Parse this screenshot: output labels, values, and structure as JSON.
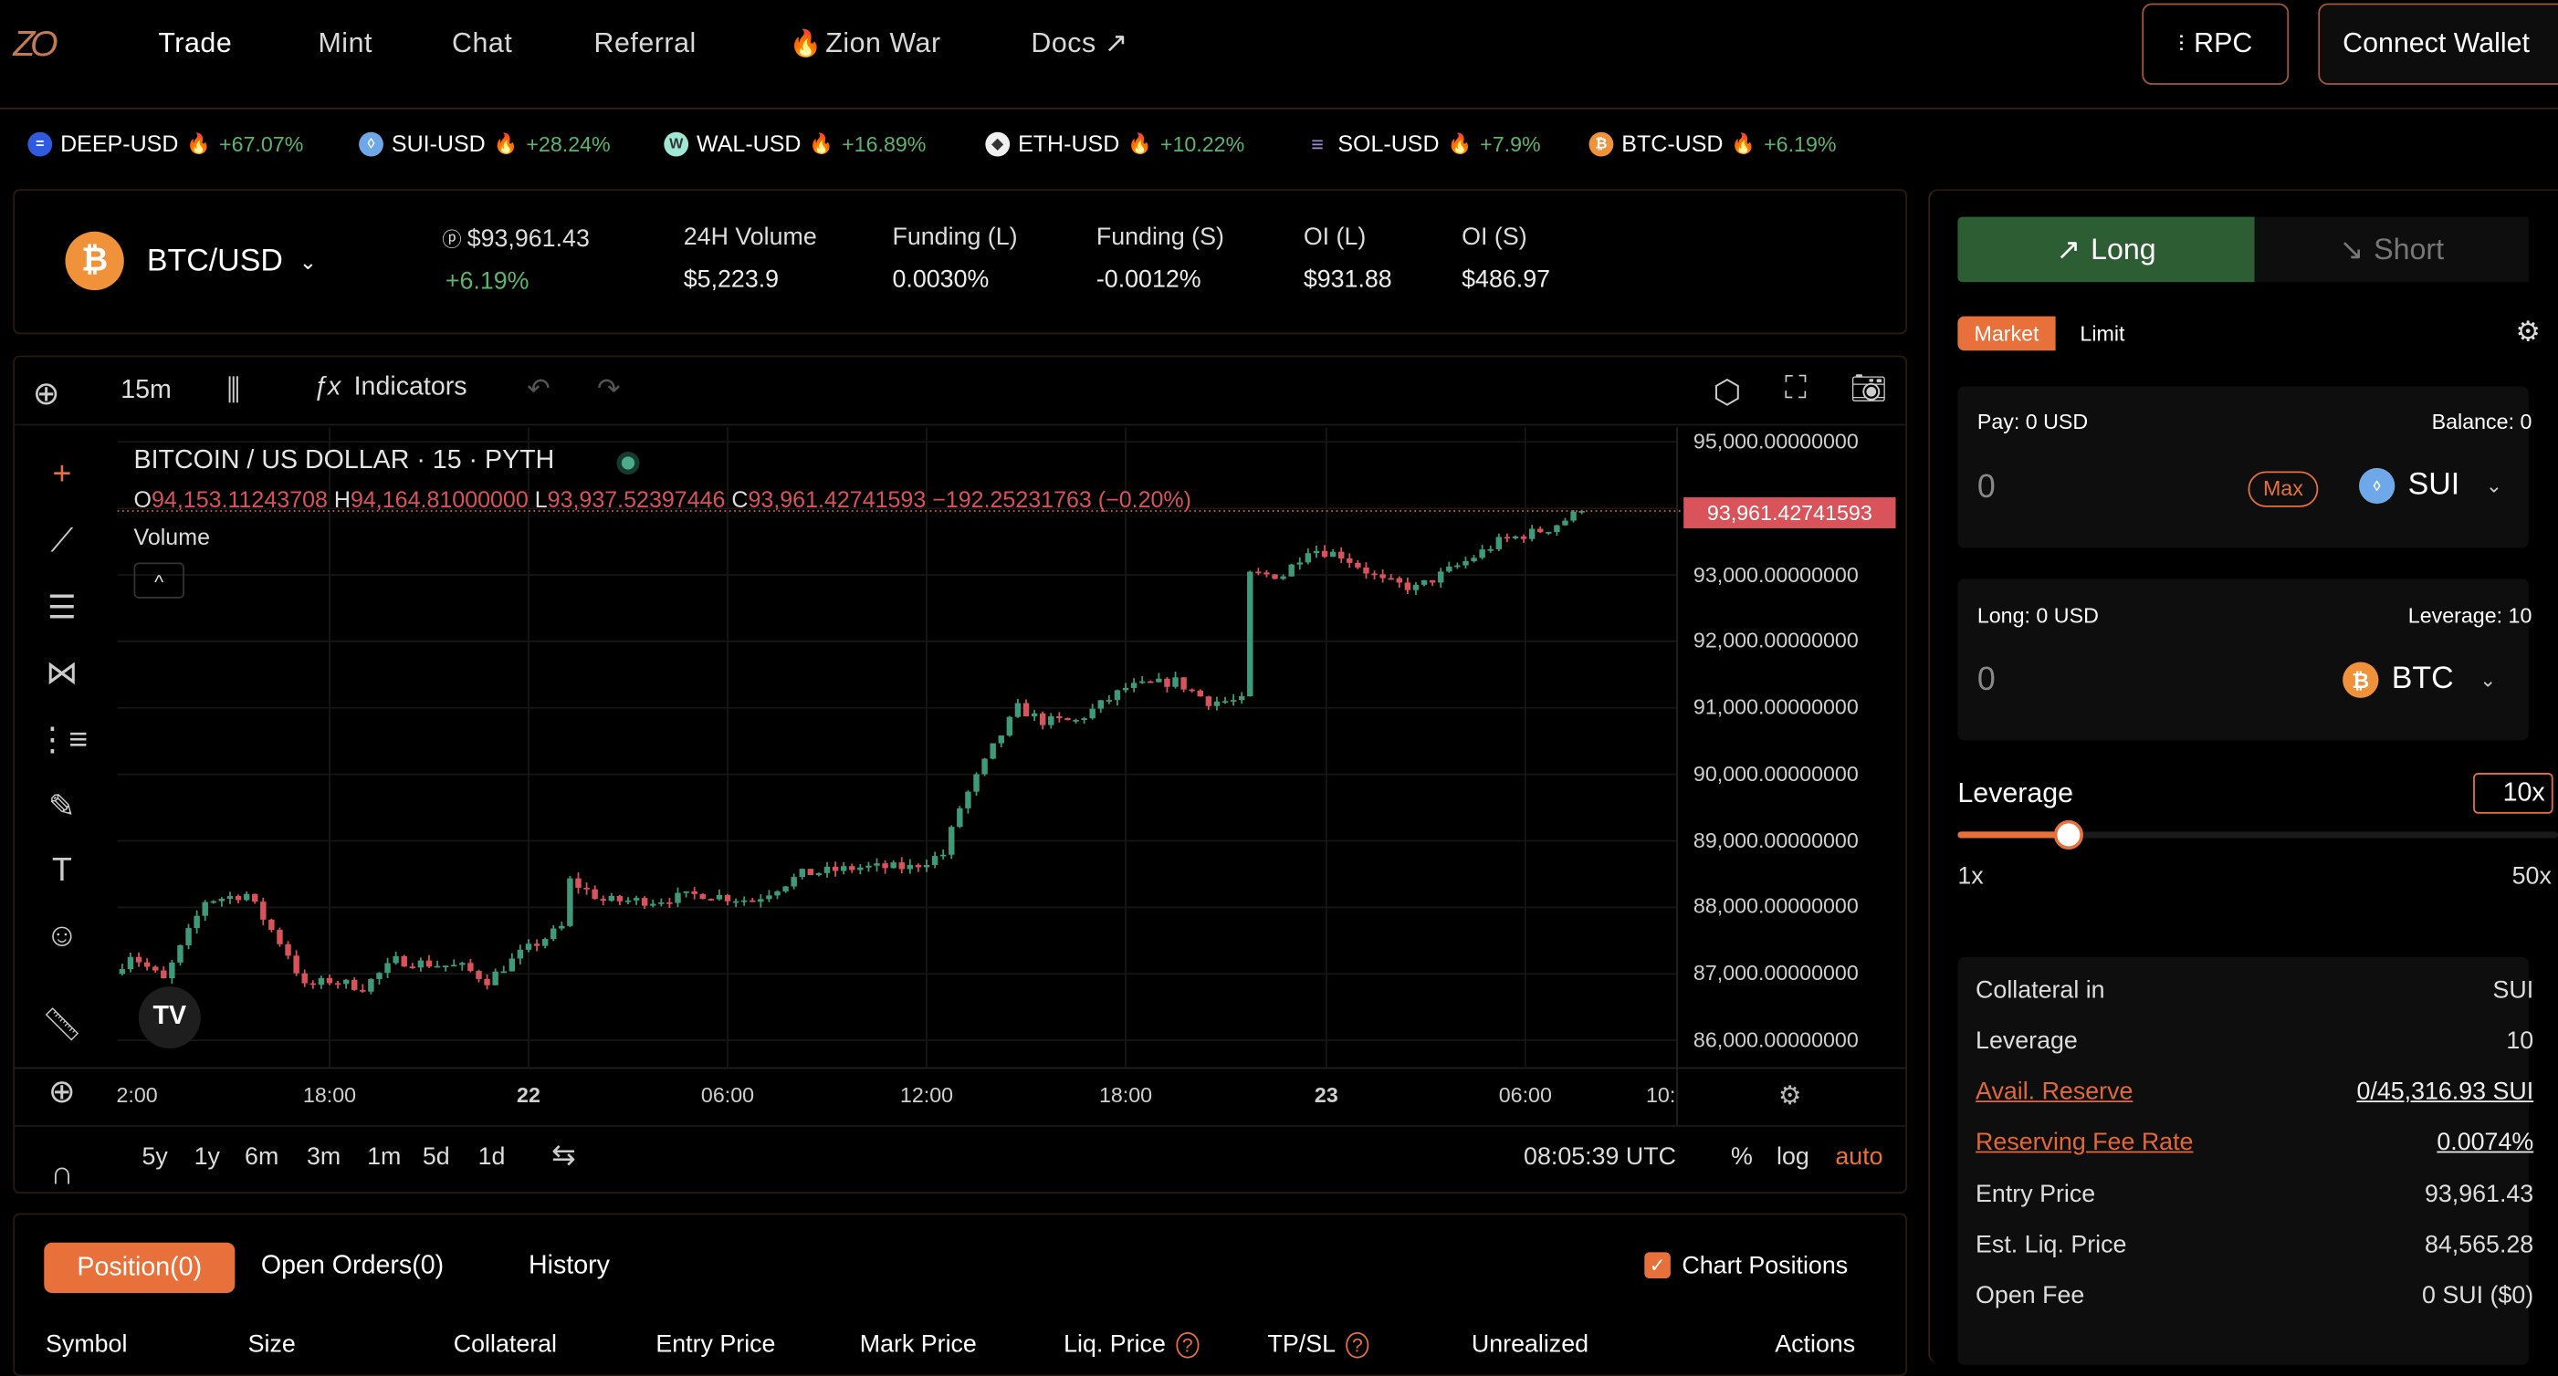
{
  "nav": {
    "logo": "ZO",
    "items": [
      "Trade",
      "Mint",
      "Chat",
      "Referral",
      "Zion War",
      "Docs ↗"
    ],
    "rpc_label": "RPC",
    "connect_label": "Connect Wallet"
  },
  "tickers": [
    {
      "pair": "DEEP-USD",
      "change": "+67.07%",
      "color": "#2f5be0",
      "glyph": "="
    },
    {
      "pair": "SUI-USD",
      "change": "+28.24%",
      "color": "#6fa8e8",
      "glyph": "◊"
    },
    {
      "pair": "WAL-USD",
      "change": "+16.89%",
      "color": "#9fe6d3",
      "glyph": "W"
    },
    {
      "pair": "ETH-USD",
      "change": "+10.22%",
      "color": "#f0f0f0",
      "glyph": "◆"
    },
    {
      "pair": "SOL-USD",
      "change": "+7.9%",
      "color": "#000000",
      "glyph": "≡"
    },
    {
      "pair": "BTC-USD",
      "change": "+6.19%",
      "color": "#f0923a",
      "glyph": "₿"
    }
  ],
  "market": {
    "pair": "BTC/USD",
    "price": "$93,961.43",
    "change": "+6.19%",
    "stats": [
      {
        "label": "24H Volume",
        "value": "$5,223.9"
      },
      {
        "label": "Funding (L)",
        "value": "0.0030%"
      },
      {
        "label": "Funding (S)",
        "value": "-0.0012%"
      },
      {
        "label": "OI (L)",
        "value": "$931.88"
      },
      {
        "label": "OI (S)",
        "value": "$486.97"
      }
    ]
  },
  "chart": {
    "interval": "15m",
    "indicators_label": "Indicators",
    "title": "BITCOIN / US DOLLAR · 15 · PYTH",
    "ohlc": {
      "o": "94,153.11243708",
      "h": "94,164.81000000",
      "l": "93,937.52397446",
      "c": "93,961.42741593",
      "change": "−192.25231763 (−0.20%)"
    },
    "volume_label": "Volume",
    "current_price_label": "93,961.42741593",
    "price_ticks": [
      "95,000.00000000",
      "94,000.00000000",
      "93,000.00000000",
      "92,000.00000000",
      "91,000.00000000",
      "90,000.00000000",
      "89,000.00000000",
      "88,000.00000000",
      "87,000.00000000",
      "86,000.00000000"
    ],
    "time_ticks": [
      "2:00",
      "18:00",
      "22",
      "06:00",
      "12:00",
      "18:00",
      "23",
      "06:00",
      "10:"
    ],
    "ranges": [
      "5y",
      "1y",
      "6m",
      "3m",
      "1m",
      "5d",
      "1d"
    ],
    "clock": "08:05:39 UTC",
    "percent_label": "%",
    "log_label": "log",
    "auto_label": "auto",
    "colors": {
      "up": "#3e9a79",
      "down": "#d9535a"
    }
  },
  "chart_data": {
    "type": "candlestick",
    "interval": "15m",
    "ylim": [
      85800,
      95200
    ],
    "ticks_y": [
      86000,
      87000,
      88000,
      89000,
      90000,
      91000,
      92000,
      93000,
      94000,
      95000
    ],
    "approx_close_path": [
      [
        "21 11:30",
        87000
      ],
      [
        "21 12:00",
        87300
      ],
      [
        "21 13:00",
        86900
      ],
      [
        "21 14:15",
        88100
      ],
      [
        "21 15:30",
        88200
      ],
      [
        "21 16:45",
        87300
      ],
      [
        "21 17:15",
        86800
      ],
      [
        "21 18:00",
        86900
      ],
      [
        "21 19:00",
        86800
      ],
      [
        "21 20:00",
        87200
      ],
      [
        "21 22:00",
        87100
      ],
      [
        "21 22:45",
        86900
      ],
      [
        "21 23:45",
        87300
      ],
      [
        "22 01:00",
        87700
      ],
      [
        "22 01:15",
        88400
      ],
      [
        "22 02:15",
        88100
      ],
      [
        "22 03:45",
        88100
      ],
      [
        "22 05:15",
        88200
      ],
      [
        "22 06:45",
        88100
      ],
      [
        "22 08:15",
        88500
      ],
      [
        "22 10:00",
        88600
      ],
      [
        "22 11:30",
        88600
      ],
      [
        "22 12:30",
        88800
      ],
      [
        "22 13:00",
        89500
      ],
      [
        "22 14:00",
        90400
      ],
      [
        "22 14:45",
        91000
      ],
      [
        "22 15:30",
        90800
      ],
      [
        "22 16:30",
        90800
      ],
      [
        "22 18:00",
        91300
      ],
      [
        "22 19:30",
        91400
      ],
      [
        "22 20:30",
        91100
      ],
      [
        "22 21:30",
        91100
      ],
      [
        "22 21:45",
        93000
      ],
      [
        "22 22:45",
        93000
      ],
      [
        "22 23:30",
        93400
      ],
      [
        "23 00:30",
        93300
      ],
      [
        "23 01:45",
        92900
      ],
      [
        "23 02:45",
        92800
      ],
      [
        "23 04:15",
        93200
      ],
      [
        "23 05:15",
        93500
      ],
      [
        "23 06:45",
        93700
      ],
      [
        "23 07:45",
        93961.43
      ]
    ],
    "last_close": 93961.42741593
  },
  "trade": {
    "long_label": "Long",
    "short_label": "Short",
    "market_label": "Market",
    "limit_label": "Limit",
    "pay": {
      "label": "Pay: 0 USD",
      "balance": "Balance: 0",
      "value": "0",
      "max": "Max",
      "token": "SUI"
    },
    "long": {
      "label": "Long: 0 USD",
      "leverage": "Leverage: 10",
      "value": "0",
      "token": "BTC"
    },
    "leverage_label": "Leverage",
    "leverage_value": "10x",
    "leverage_min": "1x",
    "leverage_max": "50x",
    "leverage_fraction": 0.184,
    "info": [
      {
        "label": "Collateral in",
        "value": "SUI"
      },
      {
        "label": "Leverage",
        "value": "10"
      },
      {
        "label": "Avail. Reserve",
        "value": "0/45,316.93 SUI"
      },
      {
        "label": "Reserving Fee Rate",
        "value": "0.0074%"
      },
      {
        "label": "Entry Price",
        "value": "93,961.43"
      },
      {
        "label": "Est. Liq. Price",
        "value": "84,565.28"
      },
      {
        "label": "Open Fee",
        "value": "0 SUI ($0)"
      }
    ]
  },
  "positions": {
    "tabs": [
      "Position(0)",
      "Open Orders(0)",
      "History"
    ],
    "chart_positions_label": "Chart Positions",
    "chart_positions_checked": true,
    "columns": [
      "Symbol",
      "Size",
      "Collateral",
      "Entry Price",
      "Mark Price",
      "Liq. Price",
      "TP/SL",
      "Unrealized",
      "Actions"
    ]
  },
  "accent": "#e8703a"
}
